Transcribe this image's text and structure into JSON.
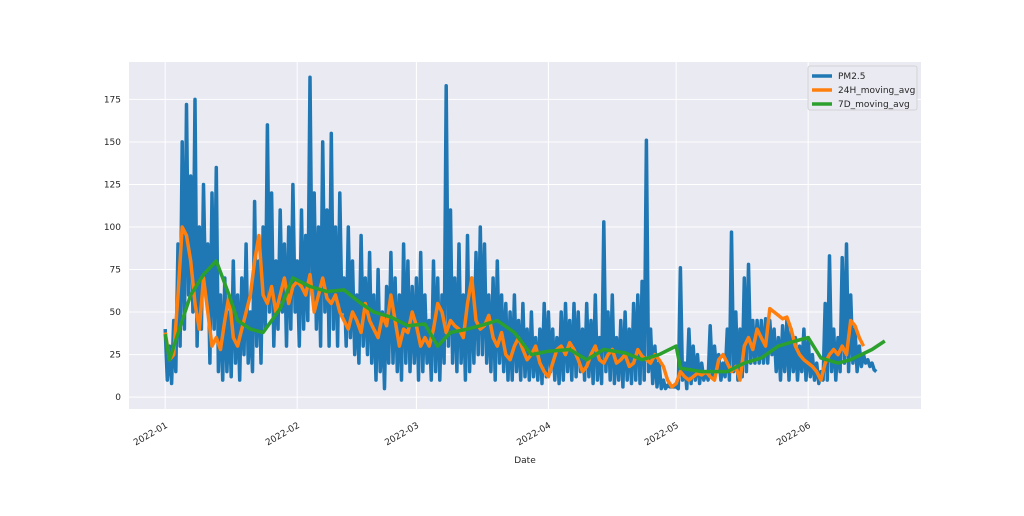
{
  "chart_data": {
    "type": "line",
    "title": "",
    "xlabel": "Date",
    "ylabel": "",
    "x_unit": "days since 2022-01-01",
    "xlim": [
      -8.5,
      177.5
    ],
    "ylim": [
      -7,
      197
    ],
    "grid": true,
    "legend_placement": "top-right",
    "x_ticks": [
      {
        "day": 0,
        "label": "2022-01"
      },
      {
        "day": 31,
        "label": "2022-02"
      },
      {
        "day": 59,
        "label": "2022-03"
      },
      {
        "day": 90,
        "label": "2022-04"
      },
      {
        "day": 120,
        "label": "2022-05"
      },
      {
        "day": 151,
        "label": "2022-06"
      }
    ],
    "y_ticks": [
      0,
      25,
      50,
      75,
      100,
      125,
      150,
      175
    ],
    "series": [
      {
        "name": "PM2.5",
        "color": "#1f77b4",
        "start_day": 0,
        "step_days": 0.5,
        "values": [
          40,
          10,
          30,
          8,
          45,
          15,
          90,
          30,
          150,
          40,
          172,
          60,
          130,
          50,
          175,
          30,
          100,
          40,
          125,
          60,
          90,
          20,
          120,
          40,
          135,
          15,
          60,
          10,
          70,
          15,
          50,
          12,
          80,
          20,
          60,
          10,
          70,
          25,
          90,
          20,
          50,
          15,
          115,
          30,
          80,
          20,
          100,
          40,
          160,
          50,
          120,
          30,
          80,
          40,
          110,
          50,
          90,
          30,
          100,
          40,
          125,
          50,
          80,
          30,
          110,
          40,
          95,
          45,
          188,
          60,
          120,
          40,
          100,
          30,
          150,
          50,
          110,
          30,
          155,
          40,
          100,
          30,
          120,
          50,
          70,
          30,
          100,
          35,
          80,
          25,
          60,
          20,
          95,
          30,
          70,
          25,
          85,
          20,
          60,
          10,
          75,
          15,
          50,
          5,
          65,
          20,
          85,
          20,
          70,
          15,
          60,
          10,
          90,
          20,
          80,
          15,
          65,
          20,
          70,
          10,
          85,
          15,
          60,
          20,
          45,
          10,
          80,
          15,
          70,
          10,
          60,
          20,
          183,
          30,
          110,
          20,
          70,
          15,
          90,
          20,
          60,
          10,
          95,
          15,
          70,
          20,
          85,
          25,
          100,
          25,
          90,
          20,
          60,
          15,
          70,
          10,
          80,
          20,
          60,
          15,
          55,
          10,
          50,
          10,
          60,
          15,
          45,
          10,
          55,
          12,
          40,
          10,
          50,
          12,
          35,
          10,
          40,
          8,
          55,
          12,
          50,
          15,
          40,
          10,
          35,
          8,
          50,
          10,
          55,
          15,
          45,
          10,
          55,
          12,
          50,
          15,
          40,
          10,
          55,
          12,
          45,
          8,
          60,
          10,
          35,
          8,
          103,
          15,
          50,
          10,
          60,
          8,
          35,
          10,
          45,
          6,
          50,
          10,
          40,
          8,
          55,
          10,
          60,
          8,
          68,
          10,
          151,
          15,
          40,
          8,
          30,
          6,
          20,
          5,
          10,
          5,
          7,
          6,
          6,
          6,
          6,
          5,
          76,
          10,
          20,
          5,
          40,
          8,
          30,
          10,
          25,
          8,
          20,
          10,
          15,
          10,
          42,
          12,
          30,
          15,
          25,
          10,
          20,
          12,
          40,
          10,
          97,
          15,
          50,
          10,
          40,
          12,
          70,
          15,
          78,
          20,
          45,
          20,
          45,
          20,
          45,
          20,
          46,
          20,
          45,
          25,
          40,
          15,
          35,
          10,
          42,
          15,
          45,
          10,
          40,
          15,
          35,
          10,
          30,
          15,
          40,
          10,
          35,
          12,
          25,
          10,
          20,
          8,
          15,
          10,
          55,
          10,
          83,
          15,
          40,
          10,
          35,
          15,
          82,
          20,
          90,
          15,
          60,
          20,
          40,
          15,
          30,
          18,
          25,
          20,
          22,
          18,
          20,
          16,
          15
        ]
      },
      {
        "name": "24H_moving_avg",
        "color": "#ff7f0e",
        "start_day": 0,
        "step_days": 1,
        "values": [
          38,
          22,
          25,
          60,
          100,
          95,
          80,
          55,
          40,
          70,
          50,
          30,
          35,
          28,
          45,
          60,
          35,
          30,
          40,
          50,
          60,
          80,
          95,
          60,
          55,
          65,
          50,
          60,
          70,
          55,
          65,
          68,
          65,
          60,
          72,
          50,
          60,
          70,
          58,
          55,
          60,
          50,
          45,
          40,
          50,
          45,
          38,
          55,
          45,
          40,
          35,
          48,
          42,
          60,
          45,
          30,
          40,
          38,
          50,
          42,
          30,
          35,
          30,
          40,
          55,
          50,
          38,
          45,
          42,
          40,
          35,
          55,
          70,
          45,
          40,
          42,
          48,
          35,
          30,
          38,
          25,
          22,
          30,
          35,
          28,
          22,
          25,
          30,
          20,
          15,
          12,
          20,
          28,
          30,
          25,
          32,
          28,
          22,
          15,
          18,
          25,
          30,
          22,
          20,
          25,
          28,
          20,
          22,
          25,
          18,
          20,
          28,
          24,
          22,
          20,
          25,
          22,
          18,
          10,
          6,
          8,
          15,
          12,
          10,
          12,
          14,
          13,
          15,
          12,
          10,
          22,
          25,
          20,
          15,
          18,
          10,
          30,
          35,
          28,
          40,
          35,
          30,
          52,
          50,
          48,
          46,
          47,
          40,
          30,
          25,
          22,
          20,
          18,
          15,
          10,
          20,
          25,
          28,
          25,
          30,
          25,
          45,
          42,
          35,
          30
        ]
      },
      {
        "name": "7D_moving_avg",
        "color": "#2ca02c",
        "points": [
          [
            0,
            37
          ],
          [
            1,
            22
          ],
          [
            4,
            45
          ],
          [
            6,
            60
          ],
          [
            9,
            72
          ],
          [
            12,
            80
          ],
          [
            15,
            60
          ],
          [
            17,
            45
          ],
          [
            20,
            40
          ],
          [
            23,
            38
          ],
          [
            27,
            52
          ],
          [
            30,
            70
          ],
          [
            34,
            65
          ],
          [
            38,
            62
          ],
          [
            42,
            63
          ],
          [
            46,
            55
          ],
          [
            49,
            50
          ],
          [
            53,
            47
          ],
          [
            57,
            42
          ],
          [
            61,
            43
          ],
          [
            64,
            30
          ],
          [
            67,
            38
          ],
          [
            71,
            40
          ],
          [
            74,
            42
          ],
          [
            78,
            45
          ],
          [
            82,
            38
          ],
          [
            86,
            25
          ],
          [
            90,
            27
          ],
          [
            95,
            28
          ],
          [
            99,
            22
          ],
          [
            103,
            28
          ],
          [
            108,
            26
          ],
          [
            112,
            22
          ],
          [
            116,
            25
          ],
          [
            120,
            30
          ],
          [
            121,
            17
          ],
          [
            126,
            15
          ],
          [
            132,
            15
          ],
          [
            136,
            20
          ],
          [
            140,
            23
          ],
          [
            144,
            30
          ],
          [
            148,
            33
          ],
          [
            151,
            35
          ],
          [
            154,
            23
          ],
          [
            158,
            20
          ],
          [
            161,
            22
          ],
          [
            166,
            28
          ],
          [
            169,
            33
          ]
        ]
      }
    ]
  }
}
